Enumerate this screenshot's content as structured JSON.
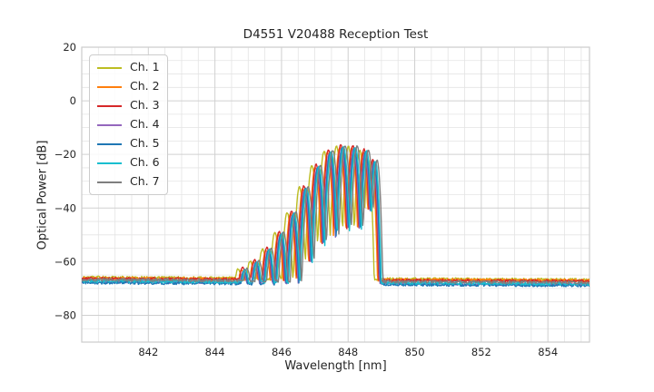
{
  "figure": {
    "background": "#ffffff",
    "text_color": "#262626",
    "grid_major_color": "#d0d0d0",
    "grid_minor_color": "#e4e4e4",
    "spine_color": "#cccccc"
  },
  "chart_data": {
    "type": "line",
    "title": "D4551 V20488 Reception Test",
    "xlabel": "Wavelength [nm]",
    "ylabel": "Optical Power [dB]",
    "xlim": [
      840.0,
      855.25
    ],
    "ylim": [
      -90,
      20
    ],
    "xticks": [
      842,
      844,
      846,
      848,
      850,
      852,
      854
    ],
    "yticks": [
      20,
      0,
      -20,
      -40,
      -60,
      -80
    ],
    "grid": {
      "show": true,
      "minor_x_step_nm": 0.5,
      "minor_y_step_db": 5
    },
    "legend": {
      "location": "upper left",
      "entries": [
        "Ch. 1",
        "Ch. 2",
        "Ch. 3",
        "Ch. 4",
        "Ch. 5",
        "Ch. 6",
        "Ch. 7"
      ]
    },
    "spectral_lobes": [
      {
        "center_nm": 844.85,
        "peak_db": -63.0,
        "half_width_nm": 0.26
      },
      {
        "center_nm": 845.21,
        "peak_db": -60.0,
        "half_width_nm": 0.24
      },
      {
        "center_nm": 845.58,
        "peak_db": -55.5,
        "half_width_nm": 0.22
      },
      {
        "center_nm": 845.95,
        "peak_db": -49.5,
        "half_width_nm": 0.2
      },
      {
        "center_nm": 846.32,
        "peak_db": -42.0,
        "half_width_nm": 0.19
      },
      {
        "center_nm": 846.69,
        "peak_db": -32.5,
        "half_width_nm": 0.185
      },
      {
        "center_nm": 847.06,
        "peak_db": -24.5,
        "half_width_nm": 0.185
      },
      {
        "center_nm": 847.43,
        "peak_db": -19.0,
        "half_width_nm": 0.185
      },
      {
        "center_nm": 847.8,
        "peak_db": -17.2,
        "half_width_nm": 0.185
      },
      {
        "center_nm": 848.16,
        "peak_db": -17.4,
        "half_width_nm": 0.18
      },
      {
        "center_nm": 848.5,
        "peak_db": -18.8,
        "half_width_nm": 0.17
      },
      {
        "center_nm": 848.76,
        "peak_db": -22.5,
        "half_width_nm": 0.15
      }
    ],
    "notch_depth_db": 33,
    "noise_amplitude_db": 0.55,
    "series": [
      {
        "name": "Ch. 1",
        "color": "#bcbd22",
        "wavelength_offset_nm": -0.15,
        "peak_offset_db": 0.3,
        "floor_db_at_840nm": -65.9,
        "floor_db_at_855nm": -66.8
      },
      {
        "name": "Ch. 2",
        "color": "#ff7f0e",
        "wavelength_offset_nm": -0.05,
        "peak_offset_db": -0.2,
        "floor_db_at_840nm": -66.2,
        "floor_db_at_855nm": -67.1
      },
      {
        "name": "Ch. 3",
        "color": "#d62728",
        "wavelength_offset_nm": -0.02,
        "peak_offset_db": 0.8,
        "floor_db_at_840nm": -66.3,
        "floor_db_at_855nm": -67.3
      },
      {
        "name": "Ch. 4",
        "color": "#9467bd",
        "wavelength_offset_nm": 0.01,
        "peak_offset_db": -0.5,
        "floor_db_at_840nm": -67.4,
        "floor_db_at_855nm": -68.5
      },
      {
        "name": "Ch. 5",
        "color": "#1f77b4",
        "wavelength_offset_nm": 0.03,
        "peak_offset_db": -0.3,
        "floor_db_at_840nm": -67.8,
        "floor_db_at_855nm": -68.9
      },
      {
        "name": "Ch. 6",
        "color": "#17becf",
        "wavelength_offset_nm": 0.06,
        "peak_offset_db": 0.0,
        "floor_db_at_840nm": -67.2,
        "floor_db_at_855nm": -68.3
      },
      {
        "name": "Ch. 7",
        "color": "#7f7f7f",
        "wavelength_offset_nm": 0.11,
        "peak_offset_db": 0.5,
        "floor_db_at_840nm": -66.7,
        "floor_db_at_855nm": -67.8
      }
    ]
  }
}
